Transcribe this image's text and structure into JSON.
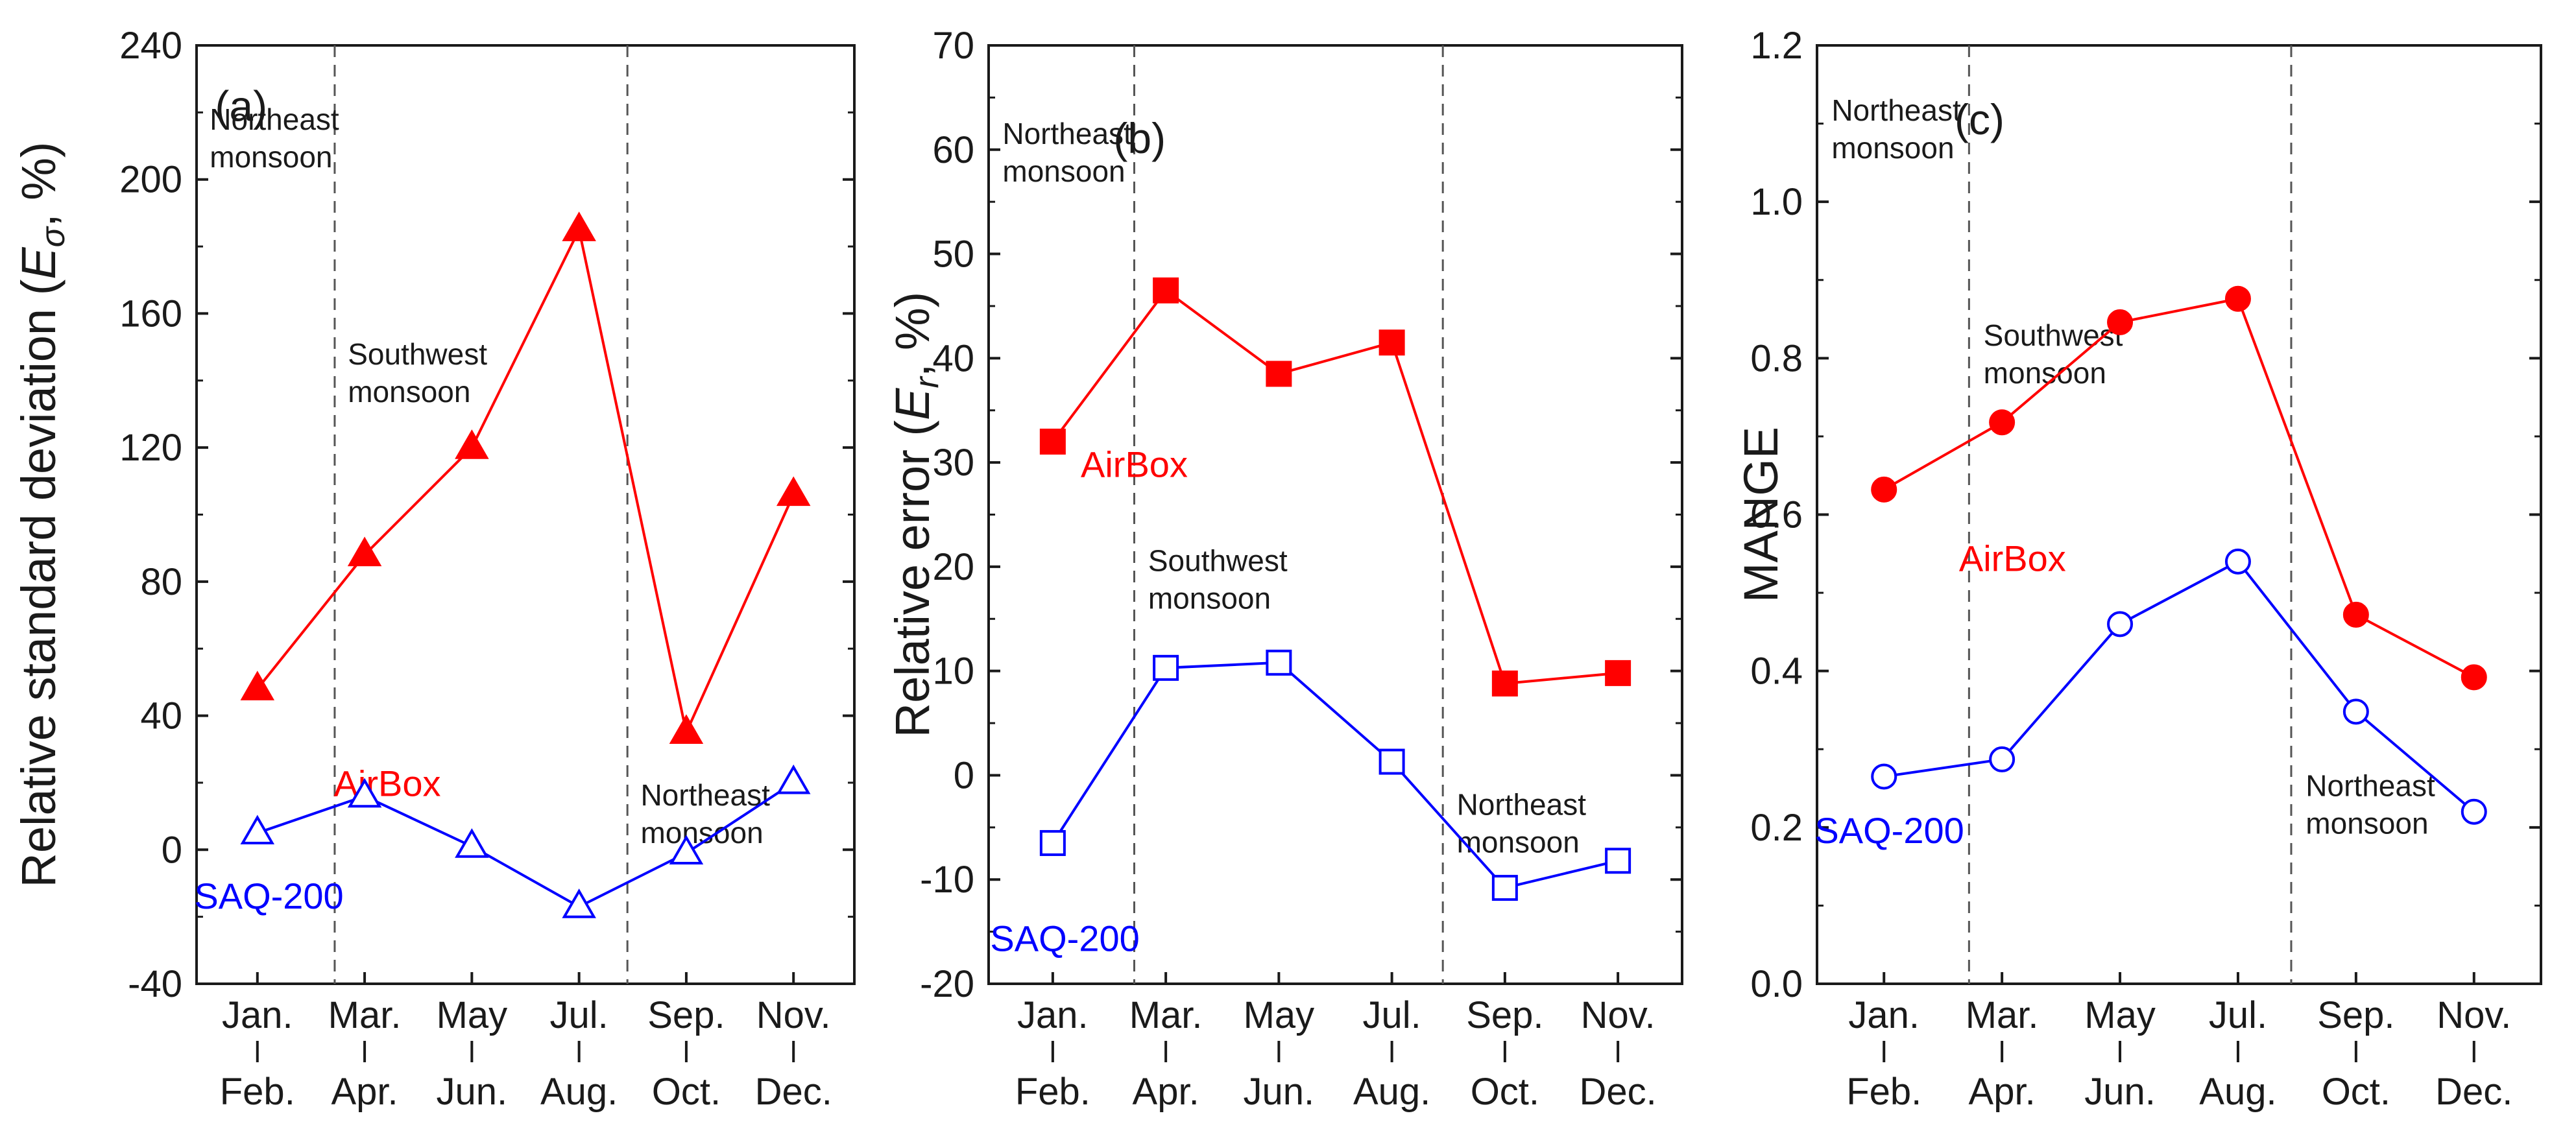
{
  "colors": {
    "airbox": "#ff0000",
    "saq": "#0000ff",
    "axis": "#1a1a1a",
    "divider": "#555555"
  },
  "seasons": {
    "northeast": [
      "Northeast",
      "monsoon"
    ],
    "southwest": [
      "Southwest",
      "monsoon"
    ]
  },
  "chart_data": [
    {
      "type": "line",
      "panel": "(a)",
      "title": "",
      "xlabel": "",
      "ylabel_prefix": "Relative standard deviation (",
      "ylabel_symbol": "E",
      "ylabel_sub": "σ",
      "ylabel_suffix": ", %)",
      "ylim": [
        -40,
        240
      ],
      "yticks": [
        "-40",
        "0",
        "40",
        "80",
        "120",
        "160",
        "200",
        "240"
      ],
      "categories": [
        [
          "Jan.",
          "Feb."
        ],
        [
          "Mar.",
          "Apr."
        ],
        [
          "May",
          "Jun."
        ],
        [
          "Jul.",
          "Aug."
        ],
        [
          "Sep.",
          "Oct."
        ],
        [
          "Nov.",
          "Dec."
        ]
      ],
      "series": [
        {
          "name": "AirBox",
          "marker": "triangle",
          "filled": true,
          "values": [
            48,
            88,
            120,
            185,
            35,
            106
          ]
        },
        {
          "name": "SAQ-200",
          "marker": "triangle",
          "filled": false,
          "values": [
            5,
            16,
            1,
            -17,
            -1,
            20
          ]
        }
      ]
    },
    {
      "type": "line",
      "panel": "(b)",
      "title": "",
      "xlabel": "",
      "ylabel_prefix": "Relative error (",
      "ylabel_symbol": "E",
      "ylabel_sub": "r",
      "ylabel_suffix": ", %)",
      "ylim": [
        -20,
        70
      ],
      "yticks": [
        "-20",
        "-10",
        "0",
        "10",
        "20",
        "30",
        "40",
        "50",
        "60",
        "70"
      ],
      "categories": [
        [
          "Jan.",
          "Feb."
        ],
        [
          "Mar.",
          "Apr."
        ],
        [
          "May",
          "Jun."
        ],
        [
          "Jul.",
          "Aug."
        ],
        [
          "Sep.",
          "Oct."
        ],
        [
          "Nov.",
          "Dec."
        ]
      ],
      "series": [
        {
          "name": "AirBox",
          "marker": "square",
          "filled": true,
          "values": [
            32,
            46.5,
            38.5,
            41.5,
            8.8,
            9.8
          ]
        },
        {
          "name": "SAQ-200",
          "marker": "square",
          "filled": false,
          "values": [
            -6.5,
            10.3,
            10.8,
            1.3,
            -10.8,
            -8.2
          ]
        }
      ]
    },
    {
      "type": "line",
      "panel": "(c)",
      "title": "",
      "xlabel": "",
      "ylabel_prefix": "MANGE",
      "ylabel_symbol": "",
      "ylabel_sub": "",
      "ylabel_suffix": "",
      "ylim": [
        0,
        1.2
      ],
      "yticks": [
        "0.0",
        "0.2",
        "0.4",
        "0.6",
        "0.8",
        "1.0",
        "1.2"
      ],
      "categories": [
        [
          "Jan.",
          "Feb."
        ],
        [
          "Mar.",
          "Apr."
        ],
        [
          "May",
          "Jun."
        ],
        [
          "Jul.",
          "Aug."
        ],
        [
          "Sep.",
          "Oct."
        ],
        [
          "Nov.",
          "Dec."
        ]
      ],
      "series": [
        {
          "name": "AirBox",
          "marker": "circle",
          "filled": true,
          "values": [
            0.632,
            0.718,
            0.846,
            0.876,
            0.472,
            0.392
          ]
        },
        {
          "name": "SAQ-200",
          "marker": "circle",
          "filled": false,
          "values": [
            0.265,
            0.287,
            0.46,
            0.54,
            0.348,
            0.22
          ]
        }
      ]
    }
  ]
}
